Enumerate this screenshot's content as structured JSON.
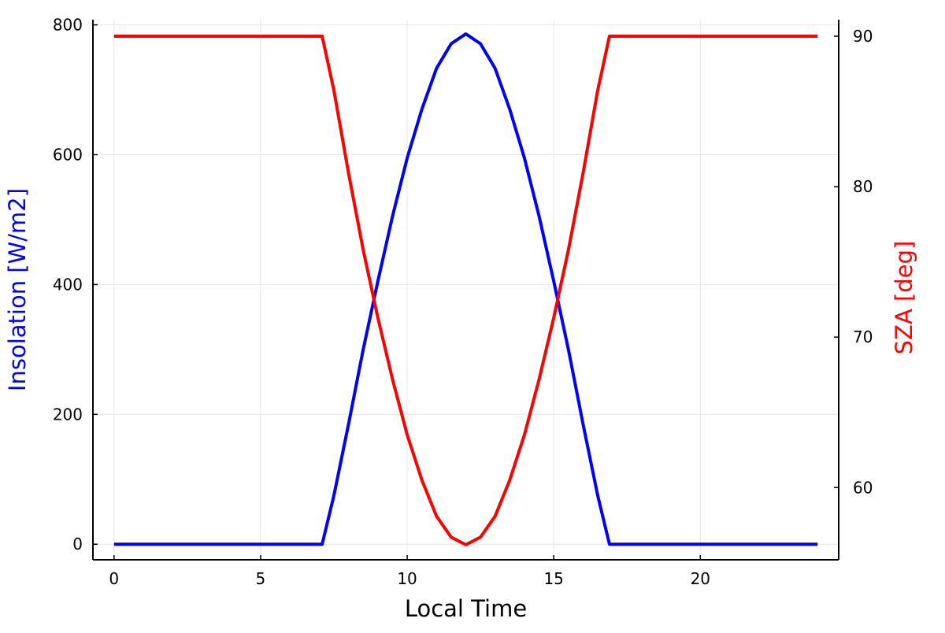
{
  "chart_data": {
    "type": "line",
    "title": "",
    "xlabel": "Local Time",
    "ylabel": "Insolation [W/m2]",
    "y2label": "SZA [deg]",
    "xlim": [
      -0.72,
      24.72
    ],
    "ylim": [
      -24,
      808
    ],
    "y2lim": [
      55.2,
      91.1
    ],
    "xticks": [
      0,
      5,
      10,
      15,
      20
    ],
    "yticks": [
      0,
      200,
      400,
      600,
      800
    ],
    "y2ticks": [
      60,
      70,
      80,
      90
    ],
    "grid": true,
    "legend": "none",
    "colors": {
      "insolation": "#0000ff",
      "sza": "#ff0000",
      "axis": "#000000",
      "grid": "#e6e6e6"
    },
    "series": [
      {
        "axis": "left",
        "color": "#0000ff",
        "x": [
          0,
          2,
          4,
          6,
          7,
          7.1,
          7.5,
          8,
          8.5,
          9,
          9.5,
          10,
          10.5,
          11,
          11.5,
          12,
          12.5,
          13,
          13.5,
          14,
          14.5,
          15,
          15.5,
          16,
          16.5,
          16.9,
          17,
          18,
          20,
          22,
          24
        ],
        "values": [
          0,
          0,
          0,
          0,
          0,
          0,
          75,
          185,
          300,
          405,
          505,
          595,
          670,
          733,
          771,
          786,
          771,
          733,
          670,
          595,
          505,
          405,
          300,
          185,
          75,
          0,
          0,
          0,
          0,
          0,
          0
        ]
      },
      {
        "axis": "right",
        "color": "#ff0000",
        "x": [
          0,
          2,
          4,
          6,
          7,
          7.1,
          7.5,
          8,
          8.5,
          9,
          9.5,
          10,
          10.5,
          11,
          11.5,
          12,
          12.5,
          13,
          13.5,
          14,
          14.5,
          15,
          15.5,
          16,
          16.5,
          16.9,
          17,
          18,
          20,
          22,
          24
        ],
        "values": [
          90,
          90,
          90,
          90,
          90,
          90,
          86.4,
          80.9,
          75.8,
          71.3,
          67.2,
          63.5,
          60.5,
          58.1,
          56.7,
          56.2,
          56.7,
          58.1,
          60.5,
          63.5,
          67.2,
          71.3,
          75.8,
          80.9,
          86.4,
          90,
          90,
          90,
          90,
          90,
          90
        ]
      }
    ]
  }
}
